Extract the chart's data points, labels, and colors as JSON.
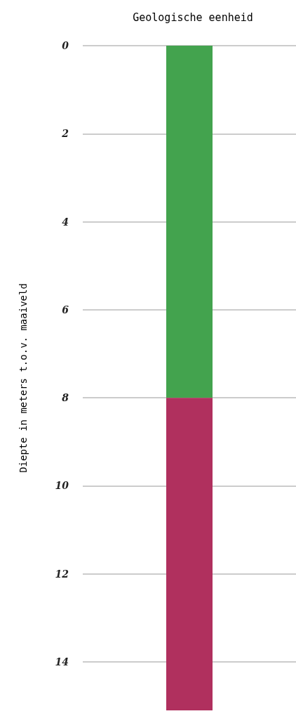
{
  "chart_data": {
    "type": "bar",
    "title": "Geologische eenheid",
    "ylabel": "Diepte in meters t.o.v. maaiveld",
    "categories": [
      null
    ],
    "stacked": true,
    "series": [
      {
        "color": "#43a34e",
        "values": [
          8
        ]
      },
      {
        "color": "#b0305e",
        "values": [
          7.1
        ]
      }
    ],
    "ylim": [
      15.1,
      0
    ],
    "yticks": [
      0,
      2,
      4,
      6,
      8,
      10,
      12,
      14
    ],
    "grid": "y"
  }
}
